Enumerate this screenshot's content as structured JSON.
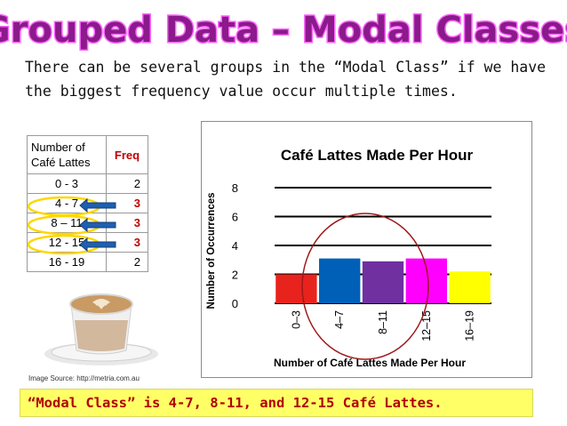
{
  "title": "Grouped Data – Modal Classes",
  "intro": {
    "line1": "There can be several groups in the “Modal Class” if we have",
    "line2": "the biggest frequency value occur multiple times."
  },
  "table": {
    "header_class": [
      "Number of",
      "Café Lattes"
    ],
    "header_freq": "Freq",
    "rows": [
      {
        "label": "0 - 3",
        "freq": "2",
        "modal": false
      },
      {
        "label": "4 - 7",
        "freq": "3",
        "modal": true
      },
      {
        "label": "8 – 11",
        "freq": "3",
        "modal": true
      },
      {
        "label": "12 - 15",
        "freq": "3",
        "modal": true
      },
      {
        "label": "16 - 19",
        "freq": "2",
        "modal": false
      }
    ]
  },
  "chart_data": {
    "type": "bar",
    "title": "Café Lattes Made Per Hour",
    "xlabel": "Number of Café Lattes Made Per Hour",
    "ylabel": "Number of Occurrences",
    "categories": [
      "0–3",
      "4–7",
      "8–11",
      "12–15",
      "16–19"
    ],
    "values": [
      2,
      3.1,
      2.9,
      3.1,
      2.2
    ],
    "colors": [
      "#e8231d",
      "#0060b8",
      "#7030a0",
      "#ff00ff",
      "#ffff00"
    ],
    "ylim": [
      0,
      8
    ],
    "yticks": [
      "0",
      "2",
      "4",
      "6",
      "8"
    ],
    "grid": true,
    "legend": "none"
  },
  "image_source": "Image Source: http://metria.com.au",
  "conclusion": "“Modal Class” is 4-7, 8-11, and 12-15 Café Lattes.",
  "colors": {
    "title_fill": "#8b1a8b",
    "title_outline": "#ff66ff",
    "modal_red": "#c00000",
    "arrow_blue": "#1f5fb0",
    "highlight_yellow": "#ffff66"
  }
}
